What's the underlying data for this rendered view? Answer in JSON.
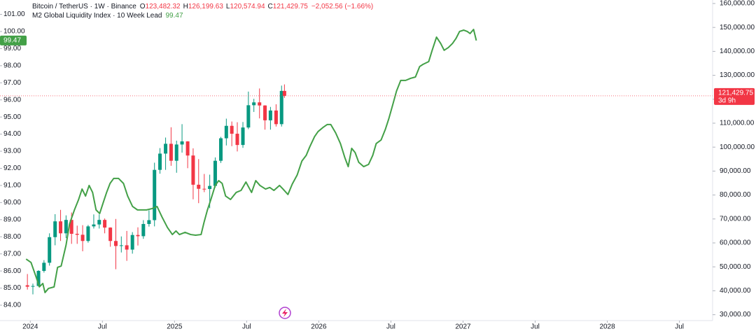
{
  "chart_data": {
    "type": "candlestick",
    "series": [
      {
        "name": "Bitcoin / TetherUS · 1W · Binance",
        "type": "candlestick",
        "axis": "y2",
        "up_color": "#089981",
        "down_color": "#f23645",
        "x": [
          2023.98,
          2024.018,
          2024.057,
          2024.095,
          2024.133,
          2024.172,
          2024.21,
          2024.248,
          2024.286,
          2024.325,
          2024.363,
          2024.401,
          2024.44,
          2024.478,
          2024.516,
          2024.555,
          2024.593,
          2024.631,
          2024.669,
          2024.708,
          2024.746,
          2024.784,
          2024.823,
          2024.861,
          2024.899,
          2024.938,
          2024.976,
          2025.014,
          2025.052,
          2025.091,
          2025.129,
          2025.167,
          2025.206,
          2025.244,
          2025.282,
          2025.321,
          2025.359,
          2025.397,
          2025.435,
          2025.474,
          2025.512,
          2025.55,
          2025.589,
          2025.627,
          2025.665,
          2025.704,
          2025.742,
          2025.762
        ],
        "open": [
          42300,
          41700,
          42000,
          48300,
          51700,
          62400,
          69000,
          64000,
          69600,
          63800,
          63400,
          60800,
          66900,
          67700,
          69600,
          66400,
          60800,
          58700,
          59000,
          57200,
          63300,
          62800,
          67900,
          69500,
          90500,
          97300,
          101400,
          94300,
          101100,
          102400,
          96500,
          84300,
          82600,
          82500,
          83800,
          94300,
          103700,
          108900,
          105600,
          100900,
          108200,
          117500,
          118700,
          117400,
          111200,
          115300,
          109600,
          123482.32
        ],
        "high": [
          47000,
          43000,
          48600,
          52800,
          64000,
          72000,
          73800,
          71500,
          72700,
          67200,
          67400,
          67500,
          71900,
          71900,
          70200,
          66500,
          70000,
          62700,
          65000,
          64500,
          66500,
          69500,
          73600,
          93500,
          99600,
          104000,
          108300,
          102700,
          109600,
          102500,
          99500,
          95000,
          88800,
          88500,
          95700,
          104300,
          111900,
          110700,
          110400,
          110500,
          123200,
          120200,
          124500,
          117500,
          116800,
          117900,
          125700,
          126199.63
        ],
        "low": [
          40500,
          38500,
          41800,
          47600,
          50500,
          59000,
          60800,
          62000,
          59600,
          59600,
          56500,
          60100,
          66000,
          66000,
          64000,
          58400,
          49000,
          56000,
          52500,
          55500,
          58900,
          61700,
          66800,
          66900,
          88900,
          90500,
          92200,
          89300,
          97700,
          91200,
          78200,
          76600,
          81200,
          74500,
          83100,
          93400,
          100700,
          100400,
          98200,
          99700,
          107500,
          114700,
          112000,
          107300,
          107300,
          108600,
          108600,
          120574.94
        ],
        "close": [
          41700,
          42000,
          48300,
          51700,
          62400,
          69000,
          64000,
          69600,
          63800,
          63400,
          60800,
          66900,
          67700,
          69600,
          66400,
          60800,
          58700,
          59000,
          57200,
          63300,
          62800,
          67900,
          69500,
          90500,
          97300,
          101400,
          94300,
          101100,
          102400,
          96500,
          84300,
          82600,
          82500,
          83800,
          94300,
          103700,
          108900,
          105600,
          100900,
          108200,
          117500,
          118700,
          117400,
          111200,
          115300,
          109600,
          123482.32,
          121429.75
        ]
      },
      {
        "name": "M2 Global Liquidity Index · 10 Week Lead",
        "type": "line",
        "axis": "y",
        "color": "#43a047",
        "x": [
          2023.971,
          2024.005,
          2024.039,
          2024.063,
          2024.087,
          2024.102,
          2024.126,
          2024.165,
          2024.189,
          2024.214,
          2024.248,
          2024.272,
          2024.306,
          2024.335,
          2024.359,
          2024.383,
          2024.408,
          2024.432,
          2024.456,
          2024.481,
          2024.505,
          2024.529,
          2024.553,
          2024.578,
          2024.612,
          2024.646,
          2024.675,
          2024.709,
          2024.743,
          2024.777,
          2024.806,
          2024.845,
          2024.879,
          2024.913,
          2024.951,
          2024.985,
          2025.01,
          2025.034,
          2025.073,
          2025.112,
          2025.146,
          2025.184,
          2025.204,
          2025.228,
          2025.252,
          2025.282,
          2025.306,
          2025.33,
          2025.354,
          2025.388,
          2025.427,
          2025.461,
          2025.495,
          2025.534,
          2025.563,
          2025.592,
          2025.631,
          2025.66,
          2025.689,
          2025.728,
          2025.752,
          2025.786,
          2025.816,
          2025.85,
          2025.883,
          2025.913,
          2025.937,
          2025.971,
          2025.995,
          2026.029,
          2026.058,
          2026.083,
          2026.117,
          2026.15,
          2026.18,
          2026.204,
          2026.228,
          2026.252,
          2026.277,
          2026.311,
          2026.345,
          2026.374,
          2026.398,
          2026.432,
          2026.461,
          2026.485,
          2026.515,
          2026.539,
          2026.568,
          2026.602,
          2026.636,
          2026.67,
          2026.699,
          2026.723,
          2026.762,
          2026.786,
          2026.816,
          2026.845,
          2026.869,
          2026.898,
          2026.927,
          2026.951,
          2026.976,
          2027.005,
          2027.029,
          2027.049,
          2027.073,
          2027.092
        ],
        "values": [
          86.7,
          86.5,
          85.68,
          85.07,
          85.27,
          84.74,
          84.98,
          85.07,
          86.21,
          86.29,
          87.52,
          88.75,
          89.57,
          90.18,
          90.79,
          90.38,
          91.0,
          90.59,
          89.57,
          89.36,
          89.98,
          90.59,
          91.12,
          91.41,
          91.41,
          91.12,
          90.38,
          89.77,
          89.57,
          89.57,
          89.57,
          89.65,
          89.77,
          89.16,
          88.54,
          88.13,
          88.34,
          88.13,
          88.26,
          88.13,
          88.09,
          88.13,
          88.83,
          89.57,
          90.18,
          91.0,
          91.28,
          91.12,
          90.38,
          90.18,
          90.59,
          90.71,
          91.2,
          90.59,
          91.28,
          91.0,
          90.79,
          90.88,
          90.71,
          91.0,
          90.79,
          90.47,
          91.08,
          91.61,
          92.43,
          92.76,
          93.25,
          93.86,
          94.15,
          94.39,
          94.56,
          94.56,
          94.07,
          93.45,
          92.64,
          92.1,
          93.17,
          92.92,
          92.35,
          92.1,
          92.23,
          92.76,
          93.45,
          93.66,
          94.27,
          94.89,
          95.79,
          96.52,
          97.14,
          97.14,
          97.26,
          97.34,
          97.95,
          98.08,
          98.24,
          98.9,
          99.67,
          99.3,
          98.9,
          99.06,
          99.3,
          99.59,
          100.0,
          100.08,
          100.0,
          99.88,
          100.12,
          99.47
        ]
      }
    ],
    "ohlc_legend": [
      {
        "key": "O",
        "value": "123,482.32"
      },
      {
        "key": "H",
        "value": "126,199.63"
      },
      {
        "key": "L",
        "value": "120,574.94"
      },
      {
        "key": "C",
        "value": "121,429.75"
      }
    ],
    "change_label": "−2,052.56 (−1.66%)",
    "line_legend_value": "99.47",
    "line_last_label": "99.47",
    "last_price_label": "121,429.75",
    "countdown": "3d 9h",
    "xlim": [
      2023.79,
      2028.73
    ],
    "xticks": [
      {
        "value": 2024,
        "label": "2024"
      },
      {
        "value": 2024.5,
        "label": "Jul"
      },
      {
        "value": 2025,
        "label": "2025"
      },
      {
        "value": 2025.5,
        "label": "Jul"
      },
      {
        "value": 2026,
        "label": "2026"
      },
      {
        "value": 2026.5,
        "label": "Jul"
      },
      {
        "value": 2027,
        "label": "2027"
      },
      {
        "value": 2027.5,
        "label": "Jul"
      },
      {
        "value": 2028,
        "label": "2028"
      },
      {
        "value": 2028.5,
        "label": "Jul"
      }
    ],
    "ylim": [
      83.1,
      101.84
    ],
    "yticks": [
      {
        "value": 84,
        "label": "84.00"
      },
      {
        "value": 85,
        "label": "85.00"
      },
      {
        "value": 86,
        "label": "86.00"
      },
      {
        "value": 87,
        "label": "87.00"
      },
      {
        "value": 88,
        "label": "88.00"
      },
      {
        "value": 89,
        "label": "89.00"
      },
      {
        "value": 90,
        "label": "90.00"
      },
      {
        "value": 91,
        "label": "91.00"
      },
      {
        "value": 92,
        "label": "92.00"
      },
      {
        "value": 93,
        "label": "93.00"
      },
      {
        "value": 94,
        "label": "94.00"
      },
      {
        "value": 95,
        "label": "95.00"
      },
      {
        "value": 96,
        "label": "96.00"
      },
      {
        "value": 97,
        "label": "97.00"
      },
      {
        "value": 98,
        "label": "98.00"
      },
      {
        "value": 99,
        "label": "99.00"
      },
      {
        "value": 100,
        "label": "100.00"
      },
      {
        "value": 101,
        "label": "101.00"
      }
    ],
    "y2lim": [
      27540,
      161460
    ],
    "y2ticks": [
      {
        "value": 30000,
        "label": "30,000.00"
      },
      {
        "value": 40000,
        "label": "40,000.00"
      },
      {
        "value": 50000,
        "label": "50,000.00"
      },
      {
        "value": 60000,
        "label": "60,000.00"
      },
      {
        "value": 70000,
        "label": "70,000.00"
      },
      {
        "value": 80000,
        "label": "80,000.00"
      },
      {
        "value": 90000,
        "label": "90,000.00"
      },
      {
        "value": 100000,
        "label": "100,000.00"
      },
      {
        "value": 110000,
        "label": "110,000.00"
      },
      {
        "value": 120000,
        "label": "120,000.00"
      },
      {
        "value": 130000,
        "label": "130,000.00"
      },
      {
        "value": 140000,
        "label": "140,000.00"
      },
      {
        "value": 150000,
        "label": "150,000.00"
      },
      {
        "value": 160000,
        "label": "160,000.00"
      }
    ],
    "grid": false
  }
}
